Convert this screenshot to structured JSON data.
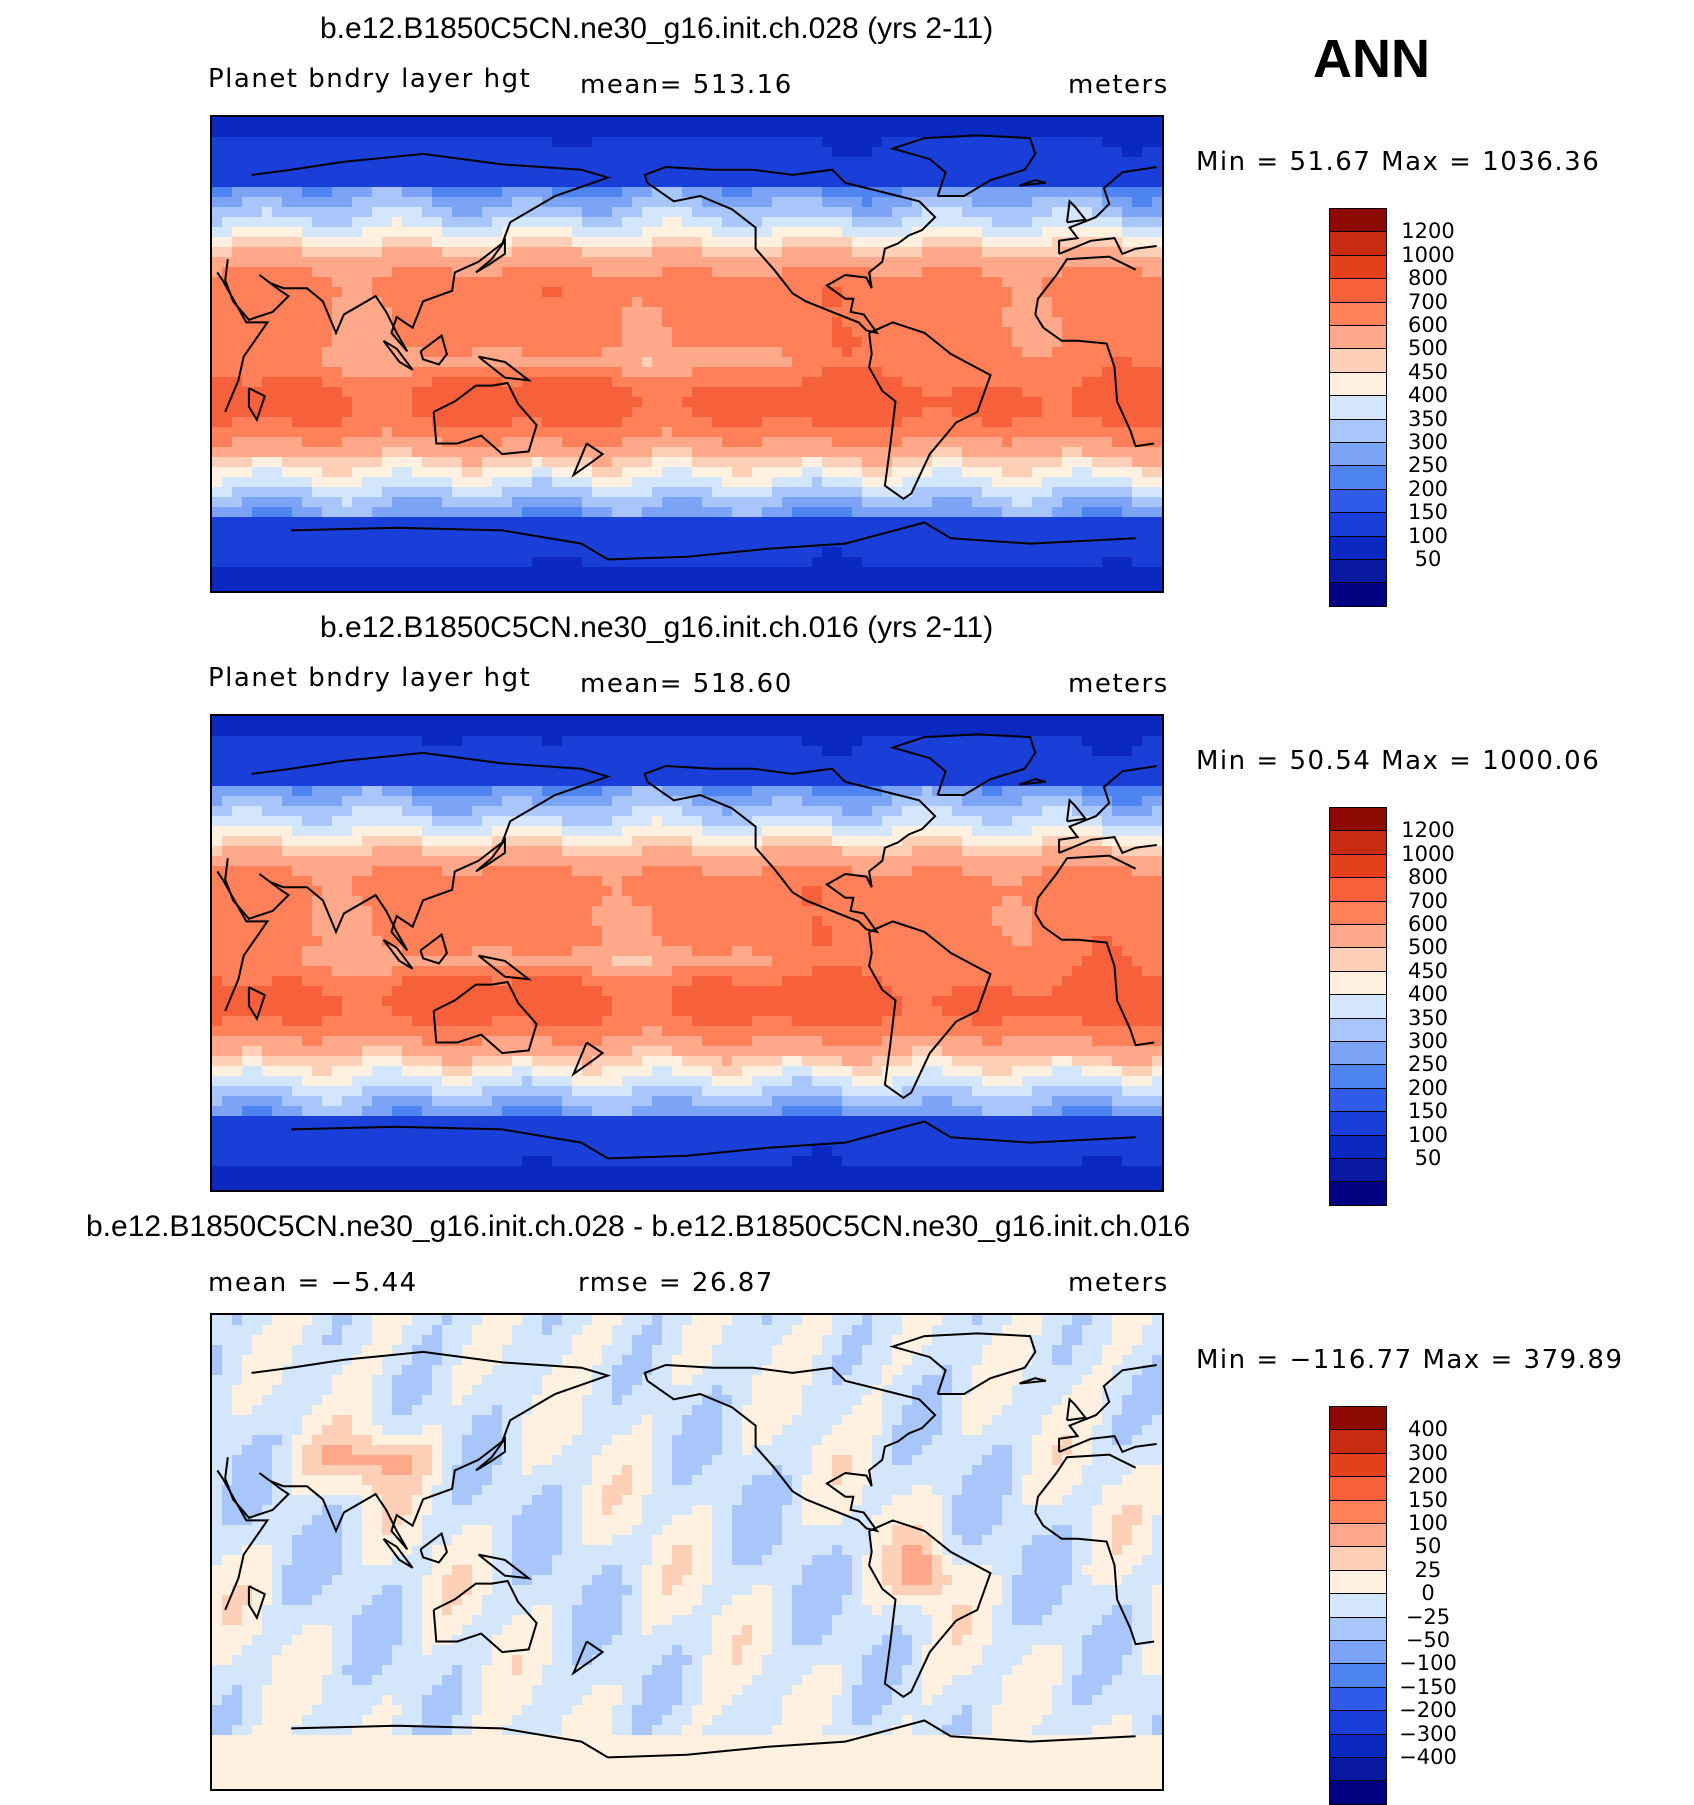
{
  "ann_label": "ANN",
  "colors": {
    "abs": [
      "#000080",
      "#0a1aa0",
      "#0b28c0",
      "#1a3fd8",
      "#2e5ce8",
      "#4d84f0",
      "#7ba4f6",
      "#a9c6fb",
      "#d4e6fc",
      "#fff0e0",
      "#ffd0b8",
      "#ffa88a",
      "#ff8059",
      "#f6603a",
      "#e4401c",
      "#c92b10",
      "#8c0a00"
    ],
    "diff": [
      "#000080",
      "#0a1aa0",
      "#0b28c0",
      "#1a3fd8",
      "#2e5ce8",
      "#4d84f0",
      "#7ba4f6",
      "#a9c6fb",
      "#d4e6fc",
      "#fff0e0",
      "#ffd0b8",
      "#ffa88a",
      "#ff8059",
      "#f6603a",
      "#e4401c",
      "#c92b10",
      "#8c0a00"
    ]
  },
  "panels": [
    {
      "title": "b.e12.B1850C5CN.ne30_g16.init.ch.028 (yrs 2-11)",
      "left_label": "Planet bndry layer hgt",
      "center_label": "mean= 513.16",
      "right_label": "meters",
      "minmax": "Min =   51.67 Max = 1036.36",
      "colorbar": [
        "1200",
        "1000",
        "800",
        "700",
        "600",
        "500",
        "450",
        "400",
        "350",
        "300",
        "250",
        "200",
        "150",
        "100",
        "50"
      ]
    },
    {
      "title": "b.e12.B1850C5CN.ne30_g16.init.ch.016 (yrs 2-11)",
      "left_label": "Planet bndry layer hgt",
      "center_label": "mean= 518.60",
      "right_label": "meters",
      "minmax": "Min =   50.54 Max = 1000.06",
      "colorbar": [
        "1200",
        "1000",
        "800",
        "700",
        "600",
        "500",
        "450",
        "400",
        "350",
        "300",
        "250",
        "200",
        "150",
        "100",
        "50"
      ]
    },
    {
      "title": "b.e12.B1850C5CN.ne30_g16.init.ch.028 - b.e12.B1850C5CN.ne30_g16.init.ch.016",
      "left_label": "mean =   −5.44",
      "center_label": "rmse =   26.87",
      "right_label": "meters",
      "minmax": "Min = −116.77 Max =  379.89",
      "colorbar": [
        "400",
        "300",
        "200",
        "150",
        "100",
        "50",
        "25",
        "0",
        "−25",
        "−50",
        "−100",
        "−150",
        "−200",
        "−300",
        "−400"
      ]
    }
  ],
  "chart_data": [
    {
      "type": "heatmap",
      "title": "b.e12.B1850C5CN.ne30_g16.init.ch.028 (yrs 2-11)",
      "variable": "Planet bndry layer hgt",
      "units": "meters",
      "mean": 513.16,
      "min": 51.67,
      "max": 1036.36,
      "contour_levels": [
        50,
        100,
        150,
        200,
        250,
        300,
        350,
        400,
        450,
        500,
        600,
        700,
        800,
        1000,
        1200
      ]
    },
    {
      "type": "heatmap",
      "title": "b.e12.B1850C5CN.ne30_g16.init.ch.016 (yrs 2-11)",
      "variable": "Planet bndry layer hgt",
      "units": "meters",
      "mean": 518.6,
      "min": 50.54,
      "max": 1000.06,
      "contour_levels": [
        50,
        100,
        150,
        200,
        250,
        300,
        350,
        400,
        450,
        500,
        600,
        700,
        800,
        1000,
        1200
      ]
    },
    {
      "type": "heatmap",
      "title": "b.e12.B1850C5CN.ne30_g16.init.ch.028 - b.e12.B1850C5CN.ne30_g16.init.ch.016",
      "units": "meters",
      "mean": -5.44,
      "rmse": 26.87,
      "min": -116.77,
      "max": 379.89,
      "contour_levels": [
        -400,
        -300,
        -200,
        -150,
        -100,
        -50,
        -25,
        0,
        25,
        50,
        100,
        150,
        200,
        300,
        400
      ]
    }
  ]
}
